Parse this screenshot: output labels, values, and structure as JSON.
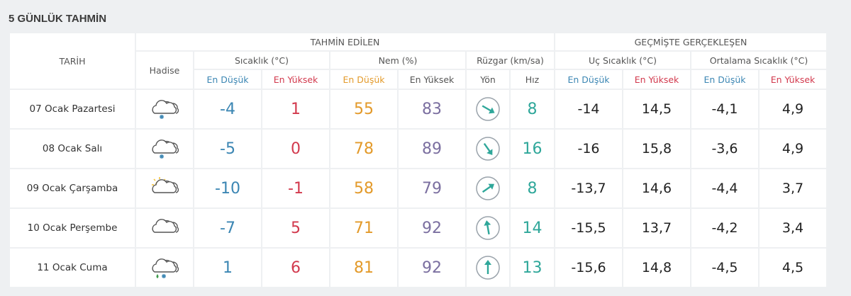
{
  "title": "5 GÜNLÜK TAHMİN",
  "headers": {
    "date": "TARİH",
    "forecast": "TAHMİN EDİLEN",
    "past": "GEÇMİŞTE GERÇEKLEŞEN",
    "event": "Hadise",
    "temp": "Sıcaklık (°C)",
    "humidity": "Nem (%)",
    "wind": "Rüzgar (km/sa)",
    "extreme": "Uç Sıcaklık (°C)",
    "average": "Ortalama Sıcaklık (°C)",
    "low": "En Düşük",
    "high": "En Yüksek",
    "direction": "Yön",
    "speed": "Hız"
  },
  "rows": [
    {
      "date": "07 Ocak Pazartesi",
      "icon": "cloud-snow-icon",
      "tmin": "-4",
      "tmax": "1",
      "hmin": "55",
      "hmax": "83",
      "dir": "southeast",
      "speed": "8",
      "xmin": "-14",
      "xmax": "14,5",
      "amin": "-4,1",
      "amax": "4,9"
    },
    {
      "date": "08 Ocak Salı",
      "icon": "cloud-snow-icon",
      "tmin": "-5",
      "tmax": "0",
      "hmin": "78",
      "hmax": "89",
      "dir": "south-southeast",
      "speed": "16",
      "xmin": "-16",
      "xmax": "15,8",
      "amin": "-3,6",
      "amax": "4,9"
    },
    {
      "date": "09 Ocak Çarşamba",
      "icon": "sun-cloud-icon",
      "tmin": "-10",
      "tmax": "-1",
      "hmin": "58",
      "hmax": "79",
      "dir": "northeast",
      "speed": "8",
      "xmin": "-13,7",
      "xmax": "14,6",
      "amin": "-4,4",
      "amax": "3,7"
    },
    {
      "date": "10 Ocak Perşembe",
      "icon": "cloud-icon",
      "tmin": "-7",
      "tmax": "5",
      "hmin": "71",
      "hmax": "92",
      "dir": "north-northwest",
      "speed": "14",
      "xmin": "-15,5",
      "xmax": "13,7",
      "amin": "-4,2",
      "amax": "3,4"
    },
    {
      "date": "11 Ocak Cuma",
      "icon": "cloud-rain-snow-icon",
      "tmin": "1",
      "tmax": "6",
      "hmin": "81",
      "hmax": "92",
      "dir": "north",
      "speed": "13",
      "xmin": "-15,6",
      "xmax": "14,8",
      "amin": "-4,5",
      "amax": "4,5"
    }
  ]
}
